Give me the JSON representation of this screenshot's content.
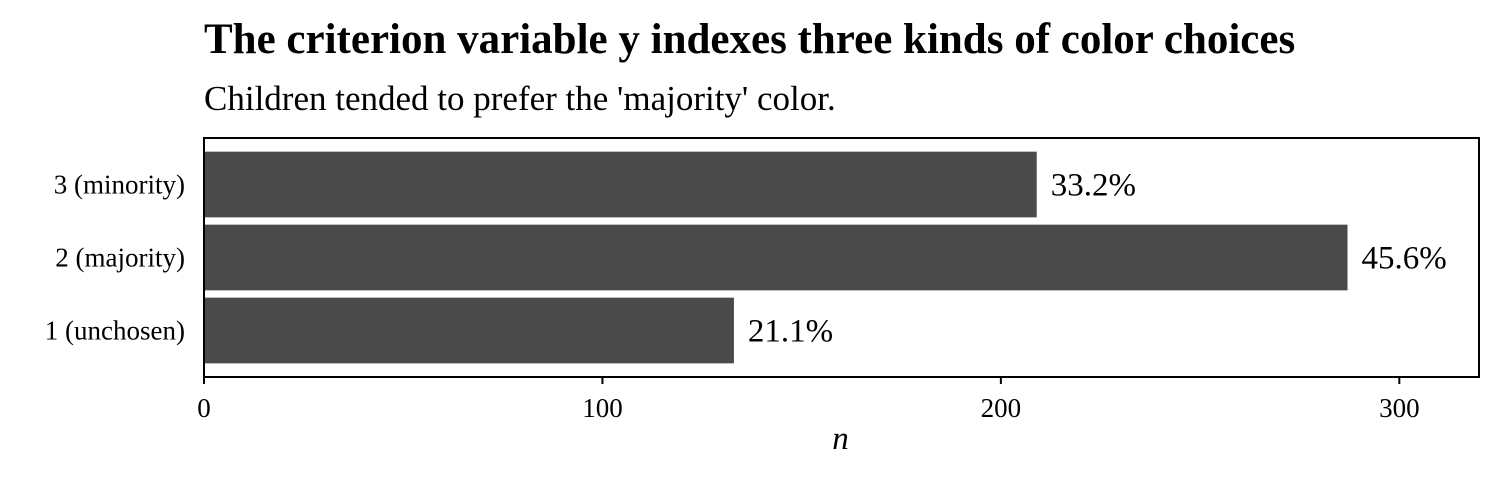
{
  "chart_data": {
    "type": "bar",
    "orientation": "horizontal",
    "title": "The criterion variable y indexes three kinds of color choices",
    "subtitle": "Children tended to prefer the 'majority' color.",
    "xlabel": "n",
    "ylabel": "",
    "categories": [
      "1 (unchosen)",
      "2 (majority)",
      "3 (minority)"
    ],
    "values": [
      133,
      287,
      209
    ],
    "data_labels": [
      "21.1%",
      "45.6%",
      "33.2%"
    ],
    "xlim": [
      0,
      320
    ],
    "xticks": [
      0,
      100,
      200,
      300
    ],
    "xtick_labels": [
      "0",
      "100",
      "200",
      "300"
    ],
    "grid": false,
    "bar_color": "#4a4a4a"
  }
}
